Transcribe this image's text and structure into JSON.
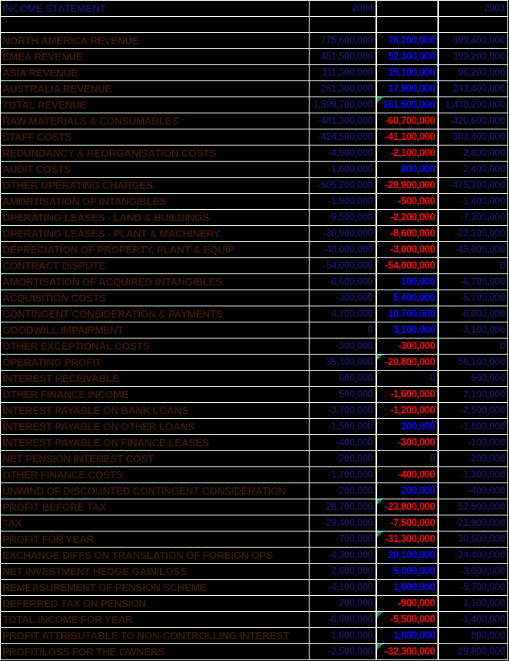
{
  "table": {
    "title": "INCOME STATEMENT",
    "col_2004": "2004",
    "col_diff": "",
    "col_2003": "2003",
    "rows": [
      {
        "label": "NORTH AMERICA REVENUE",
        "v2004": "775,600,000",
        "diff": "76,200,000",
        "diff_class": "pos",
        "v2003": "699,400,000",
        "flag": false
      },
      {
        "label": "EMEA REVENUE",
        "v2004": "451,500,000",
        "diff": "52,300,000",
        "diff_class": "pos",
        "v2003": "399,200,000",
        "flag": false
      },
      {
        "label": "ASIA REVENUE",
        "v2004": "111,300,000",
        "diff": "15,100,000",
        "diff_class": "pos",
        "v2003": "96,200,000",
        "flag": false
      },
      {
        "label": "AUSTRALIA REVENUE",
        "v2004": "261,300,000",
        "diff": "17,900,000",
        "diff_class": "pos",
        "v2003": "243,400,000",
        "flag": false
      },
      {
        "label": "TOTAL REVENUE",
        "v2004": "1,599,700,000",
        "diff": "161,500,000",
        "diff_class": "pos",
        "v2003": "1,438,200,000",
        "flag": true
      },
      {
        "label": "RAW MATERIALS & CONSUMABLES",
        "v2004": "-481,300,000",
        "diff": "-60,700,000",
        "diff_class": "neg",
        "v2003": "-420,600,000",
        "flag": false
      },
      {
        "label": "STAFF COSTS",
        "v2004": "-424,500,000",
        "diff": "-41,100,000",
        "diff_class": "neg",
        "v2003": "-383,400,000",
        "flag": false
      },
      {
        "label": "REDUNDANCY & REORGANISATION COSTS",
        "v2004": "-4,900,000",
        "diff": "-2,100,000",
        "diff_class": "neg",
        "v2003": "-2,800,000",
        "flag": false
      },
      {
        "label": "AUDIT COSTS",
        "v2004": "-1,600,000",
        "diff": "800,000",
        "diff_class": "pos",
        "v2003": "-2,400,000",
        "flag": false
      },
      {
        "label": "OTHER OPERATING CHARGES",
        "v2004": "-505,200,000",
        "diff": "-29,900,000",
        "diff_class": "neg",
        "v2003": "-475,300,000",
        "flag": false
      },
      {
        "label": "AMORTISATION OF INTANGIBLES",
        "v2004": "-1,900,000",
        "diff": "-500,000",
        "diff_class": "neg",
        "v2003": "-1,400,000",
        "flag": false
      },
      {
        "label": "OPERATING LEASES - LAND & BUILDINGS",
        "v2004": "-9,500,000",
        "diff": "-2,200,000",
        "diff_class": "neg",
        "v2003": "-7,300,000",
        "flag": false
      },
      {
        "label": "OPERATING LEASES - PLANT & MACHINERY",
        "v2004": "-30,900,000",
        "diff": "-8,600,000",
        "diff_class": "neg",
        "v2003": "-22,300,000",
        "flag": false
      },
      {
        "label": "DEPRECIATION OF PROPERTY, PLANT & EQUIP",
        "v2004": "-48,000,000",
        "diff": "-3,000,000",
        "diff_class": "neg",
        "v2003": "-45,000,000",
        "flag": false
      },
      {
        "label": "CONTRACT DISPUTE",
        "v2004": "-54,000,000",
        "diff": "-54,000,000",
        "diff_class": "neg",
        "v2003": "0",
        "flag": false
      },
      {
        "label": "AMORTISATION OF ACQUIRED INTANGIBLES",
        "v2004": "-6,600,000",
        "diff": "100,000",
        "diff_class": "pos",
        "v2003": "-6,700,000",
        "flag": false
      },
      {
        "label": "ACQUISITION COSTS",
        "v2004": "-300,000",
        "diff": "5,400,000",
        "diff_class": "pos",
        "v2003": "-5,700,000",
        "flag": false
      },
      {
        "label": "CONTINGENT CONSIDERATION & PAYMENTS",
        "v2004": "4,700,000",
        "diff": "10,700,000",
        "diff_class": "pos",
        "v2003": "-6,000,000",
        "flag": false
      },
      {
        "label": "GOODWILL IMPAIRMENT",
        "v2004": "0",
        "diff": "3,100,000",
        "diff_class": "pos",
        "v2003": "-3,100,000",
        "flag": false
      },
      {
        "label": "OTHER EXCEPTIONAL COSTS",
        "v2004": "-300,000",
        "diff": "-300,000",
        "diff_class": "neg",
        "v2003": "0",
        "flag": false
      },
      {
        "label": "OPERATING PROFIT",
        "v2004": "35,300,000",
        "diff": "-20,800,000",
        "diff_class": "neg",
        "v2003": "56,100,000",
        "flag": true
      },
      {
        "label": "INTEREST RECEIVABLE",
        "v2004": "600,000",
        "diff": "0",
        "diff_class": "zero",
        "v2003": "600,000",
        "flag": false
      },
      {
        "label": "OTHER FINANCE INCOME",
        "v2004": "500,000",
        "diff": "-1,600,000",
        "diff_class": "neg",
        "v2003": "2,100,000",
        "flag": false
      },
      {
        "label": "INTEREST PAYABLE ON BANK LOANS",
        "v2004": "-3,700,000",
        "diff": "-1,200,000",
        "diff_class": "neg",
        "v2003": "-2,500,000",
        "flag": false
      },
      {
        "label": "INTEREST PAYABLE ON OTHER LOANS",
        "v2004": "-1,500,000",
        "diff": "300,000",
        "diff_class": "pos",
        "v2003": "-1,800,000",
        "flag": false
      },
      {
        "label": "INTEREST PAYABLE ON FINANCE LEASES",
        "v2004": "-400,000",
        "diff": "-300,000",
        "diff_class": "neg",
        "v2003": "-100,000",
        "flag": false
      },
      {
        "label": "NET PENSION INTEREST COST",
        "v2004": "-200,000",
        "diff": "0",
        "diff_class": "zero",
        "v2003": "-200,000",
        "flag": false
      },
      {
        "label": "OTHER FINANCE COSTS",
        "v2004": "-1,700,000",
        "diff": "-400,000",
        "diff_class": "neg",
        "v2003": "-1,300,000",
        "flag": false
      },
      {
        "label": "UNWIND OF DISCOUNTED CONTINGENT CONSIDERATION",
        "v2004": "-200,000",
        "diff": "200,000",
        "diff_class": "pos",
        "v2003": "-400,000",
        "flag": false
      },
      {
        "label": "PROFIT BEFORE TAX",
        "v2004": "28,700,000",
        "diff": "-23,800,000",
        "diff_class": "neg",
        "v2003": "52,500,000",
        "flag": true
      },
      {
        "label": "TAX",
        "v2004": "-29,400,000",
        "diff": "-7,500,000",
        "diff_class": "neg",
        "v2003": "-21,900,000",
        "flag": false
      },
      {
        "label": "PROFIT FOR YEAR",
        "v2004": "-700,000",
        "diff": "-31,300,000",
        "diff_class": "neg",
        "v2003": "30,600,000",
        "flag": true
      },
      {
        "label": "EXCHANGE DIFFS ON TRANSLATION OF FOREIGN OPS",
        "v2004": "-4,300,000",
        "diff": "20,100,000",
        "diff_class": "pos",
        "v2003": "-24,400,000",
        "flag": false
      },
      {
        "label": "NET INVESTMENT HEDGE GAIN/LOSS",
        "v2004": "2,000,000",
        "diff": "5,000,000",
        "diff_class": "pos",
        "v2003": "-3,000,000",
        "flag": false
      },
      {
        "label": "REMEASUREMENT OF PENSION SCHEME",
        "v2004": "-4,100,000",
        "diff": "1,600,000",
        "diff_class": "pos",
        "v2003": "-5,700,000",
        "flag": false
      },
      {
        "label": "DEFERRED TAX ON PENSION",
        "v2004": "200,000",
        "diff": "-900,000",
        "diff_class": "neg",
        "v2003": "1,100,000",
        "flag": false
      },
      {
        "label": "TOTAL INCOME FOR YEAR",
        "v2004": "-6,900,000",
        "diff": "-5,500,000",
        "diff_class": "neg",
        "v2003": "-1,400,000",
        "flag": true
      },
      {
        "label": "PROFIT ATTRIBUTABLE TO NON-CONTROLLING INTEREST",
        "v2004": "1,800,000",
        "diff": "1,000,000",
        "diff_class": "pos",
        "v2003": "800,000",
        "flag": false
      },
      {
        "label": "PROFIT/LOSS FOR THE OWNERS",
        "v2004": "-2,500,000",
        "diff": "-32,300,000",
        "diff_class": "neg",
        "v2003": "29,800,000",
        "flag": true
      }
    ]
  },
  "colors": {
    "background": "#000000",
    "grid_white": "#ffffff",
    "label_maroon": "#3c1708",
    "number_navy": "#14145a",
    "positive_blue": "#0a0aff",
    "negative_red": "#ff0d0d",
    "flag_green": "#00a14b"
  }
}
